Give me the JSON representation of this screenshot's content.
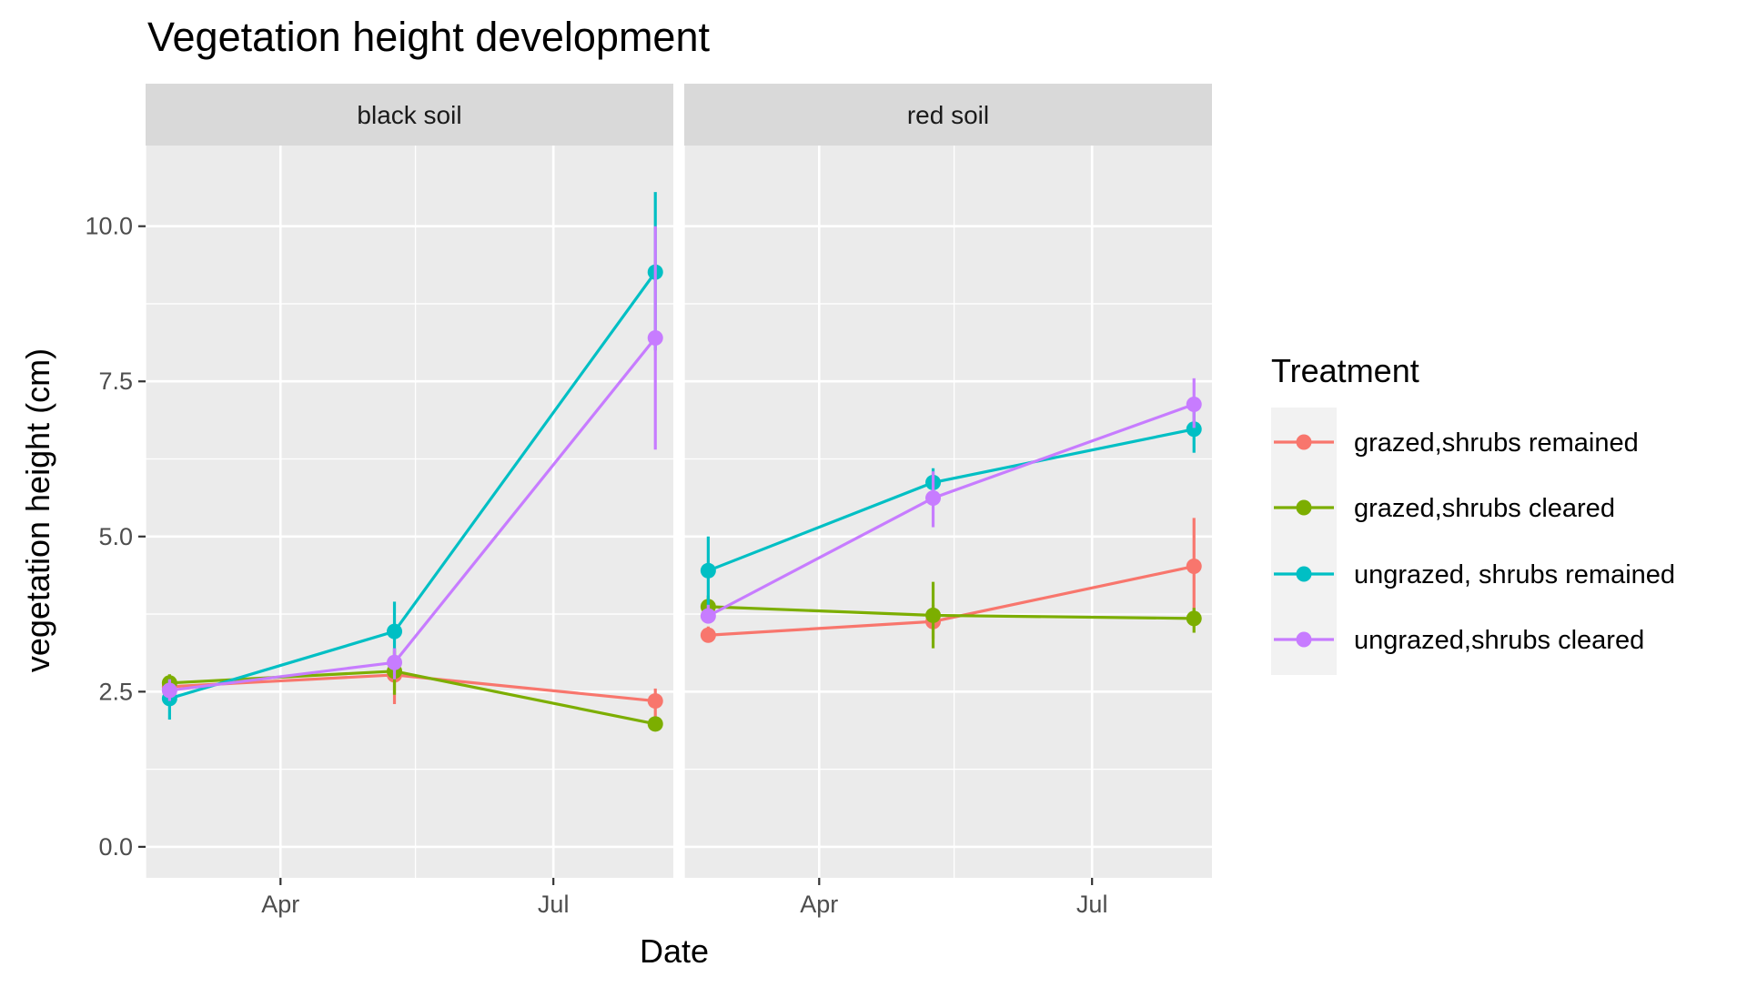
{
  "chart_data": {
    "type": "line",
    "title": "Vegetation height development",
    "xlabel": "Date",
    "ylabel": "vegetation height (cm)",
    "ylim": [
      -0.5,
      11.3
    ],
    "y_ticks": [
      0.0,
      2.5,
      5.0,
      7.5,
      10.0
    ],
    "y_tick_labels": [
      "0.0",
      "2.5",
      "5.0",
      "7.5",
      "10.0"
    ],
    "xlim": [
      "2019-02-15",
      "2019-08-10"
    ],
    "x_major_ticks": [
      "2019-04-01",
      "2019-07-01"
    ],
    "x_tick_labels": [
      "Apr",
      "Jul"
    ],
    "x_minor_ticks": [
      "2019-02-15",
      "2019-05-16"
    ],
    "grid": true,
    "legend": {
      "title": "Treatment",
      "position": "right",
      "entries": [
        "grazed,shrubs remained",
        "grazed,shrubs cleared",
        "ungrazed, shrubs remained",
        "ungrazed,shrubs cleared"
      ]
    },
    "colors": [
      "#F8766D",
      "#7CAE00",
      "#00BFC4",
      "#C77CFF"
    ],
    "facets": [
      {
        "label": "black soil",
        "x": [
          "2019-02-23",
          "2019-05-09",
          "2019-08-04"
        ],
        "series": [
          {
            "name": "grazed,shrubs remained",
            "values": [
              2.58,
              2.77,
              2.35
            ],
            "errors": [
              [
                2.4,
                2.75
              ],
              [
                2.3,
                3.15
              ],
              [
                2.1,
                2.55
              ]
            ]
          },
          {
            "name": "grazed,shrubs cleared",
            "values": [
              2.64,
              2.83,
              1.98
            ],
            "errors": [
              [
                2.5,
                2.78
              ],
              [
                2.45,
                3.2
              ],
              [
                1.88,
                2.08
              ]
            ]
          },
          {
            "name": "ungrazed, shrubs remained",
            "values": [
              2.39,
              3.47,
              9.26
            ],
            "errors": [
              [
                2.05,
                2.7
              ],
              [
                3.05,
                3.95
              ],
              [
                8.0,
                10.55
              ]
            ]
          },
          {
            "name": "ungrazed,shrubs cleared",
            "values": [
              2.52,
              2.97,
              8.2
            ],
            "errors": [
              [
                2.35,
                2.7
              ],
              [
                2.7,
                3.2
              ],
              [
                6.4,
                10.0
              ]
            ]
          }
        ]
      },
      {
        "label": "red soil",
        "x": [
          "2019-02-23",
          "2019-05-09",
          "2019-08-04"
        ],
        "series": [
          {
            "name": "grazed,shrubs remained",
            "values": [
              3.41,
              3.63,
              4.52
            ],
            "errors": [
              [
                3.3,
                3.55
              ],
              [
                3.35,
                3.9
              ],
              [
                3.75,
                5.3
              ]
            ]
          },
          {
            "name": "grazed,shrubs cleared",
            "values": [
              3.87,
              3.73,
              3.68
            ],
            "errors": [
              [
                3.7,
                4.05
              ],
              [
                3.2,
                4.27
              ],
              [
                3.45,
                3.85
              ]
            ]
          },
          {
            "name": "ungrazed, shrubs remained",
            "values": [
              4.45,
              5.87,
              6.73
            ],
            "errors": [
              [
                3.85,
                5.0
              ],
              [
                5.5,
                6.1
              ],
              [
                6.35,
                7.05
              ]
            ]
          },
          {
            "name": "ungrazed,shrubs cleared",
            "values": [
              3.72,
              5.62,
              7.13
            ],
            "errors": [
              [
                3.6,
                3.9
              ],
              [
                5.15,
                6.05
              ],
              [
                6.75,
                7.55
              ]
            ]
          }
        ]
      }
    ]
  }
}
